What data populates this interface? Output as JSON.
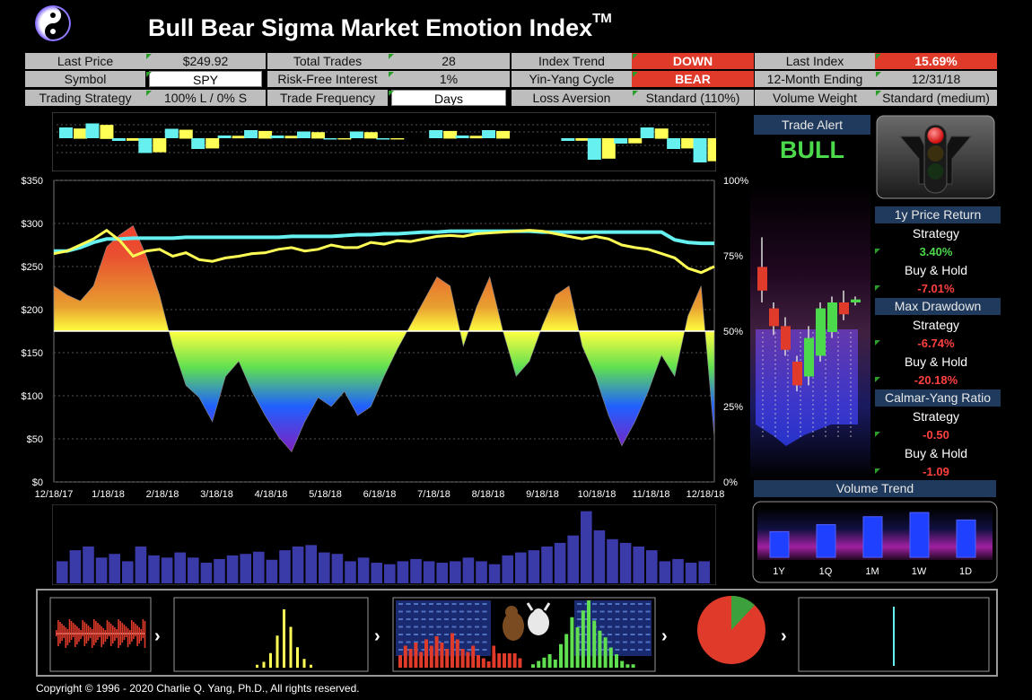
{
  "header": {
    "title": "Bull Bear Sigma Market Emotion Index",
    "trademark": "TM"
  },
  "colors": {
    "red": "#e03a2a",
    "green": "#4cd94c",
    "yellow": "#ffff55",
    "cyan": "#66f0f0",
    "panel_blue": "#1f3a5c"
  },
  "table": {
    "row1": [
      {
        "label": "Last Price",
        "value": "$249.92"
      },
      {
        "label": "Total Trades",
        "value": "28"
      },
      {
        "label": "Index Trend",
        "value": "DOWN"
      },
      {
        "label": "Last Index",
        "value": "15.69%"
      }
    ],
    "row2": [
      {
        "label": "Symbol",
        "value": "SPY"
      },
      {
        "label": "Risk-Free Interest",
        "value": "1%"
      },
      {
        "label": "Yin-Yang Cycle",
        "value": "BEAR"
      },
      {
        "label": "12-Month Ending",
        "value": "12/31/18"
      }
    ],
    "row3": [
      {
        "label": "Trading Strategy",
        "value": "100% L / 0% S"
      },
      {
        "label": "Trade Frequency",
        "value": "Days"
      },
      {
        "label": "Loss Aversion",
        "value": "Standard (110%)"
      },
      {
        "label": "Volume Weight",
        "value": "Standard (medium)"
      }
    ]
  },
  "trade_alert": {
    "title": "Trade Alert",
    "signal": "BULL"
  },
  "traffic_light": {
    "lit": "red"
  },
  "stats": {
    "price_return": {
      "title": "1y Price Return",
      "strategy_label": "Strategy",
      "strategy_value": "3.40%",
      "bh_label": "Buy & Hold",
      "bh_value": "-7.01%"
    },
    "max_drawdown": {
      "title": "Max Drawdown",
      "strategy_label": "Strategy",
      "strategy_value": "-6.74%",
      "bh_label": "Buy & Hold",
      "bh_value": "-20.18%"
    },
    "calmar": {
      "title": "Calmar-Yang Ratio",
      "strategy_label": "Strategy",
      "strategy_value": "-0.50",
      "bh_label": "Buy & Hold",
      "bh_value": "-1.09"
    }
  },
  "volume_trend": {
    "title": "Volume Trend",
    "labels": [
      "1Y",
      "1Q",
      "1M",
      "1W",
      "1D"
    ],
    "values": [
      0.55,
      0.7,
      0.87,
      0.96,
      0.8
    ]
  },
  "copyright": "Copyright © 1996 - 2020 Charlie Q. Yang, Ph.D., All rights reserved.",
  "chart_data": {
    "type": "line",
    "x_ticks": [
      "12/18/17",
      "1/18/18",
      "2/18/18",
      "3/18/18",
      "4/18/18",
      "5/18/18",
      "6/18/18",
      "7/18/18",
      "8/18/18",
      "9/18/18",
      "10/18/18",
      "11/18/18",
      "12/18/18"
    ],
    "y_left_ticks": [
      "$0",
      "$50",
      "$100",
      "$150",
      "$200",
      "$250",
      "$300",
      "$350"
    ],
    "y_right_ticks": [
      "0%",
      "25%",
      "50%",
      "75%",
      "100%"
    ],
    "ylim_left": [
      0,
      350
    ],
    "ylim_right": [
      0,
      100
    ],
    "series": [
      {
        "name": "price",
        "axis": "left",
        "color": "#ffff55",
        "values": [
          265,
          268,
          275,
          282,
          292,
          280,
          262,
          268,
          270,
          262,
          266,
          258,
          256,
          260,
          262,
          265,
          266,
          270,
          272,
          268,
          270,
          275,
          272,
          272,
          278,
          276,
          280,
          279,
          282,
          285,
          286,
          285,
          288,
          289,
          290,
          291,
          292,
          291,
          288,
          285,
          282,
          285,
          282,
          275,
          272,
          270,
          265,
          260,
          248,
          243,
          250
        ]
      },
      {
        "name": "trend",
        "axis": "left",
        "color": "#66f0f0",
        "values": [
          268,
          268,
          272,
          278,
          282,
          282,
          283,
          283,
          283,
          283,
          284,
          284,
          284,
          284,
          284,
          284,
          284,
          284,
          285,
          285,
          285,
          285,
          286,
          287,
          287,
          288,
          288,
          289,
          290,
          290,
          291,
          291,
          291,
          291,
          291,
          291,
          291,
          290,
          290,
          290,
          290,
          290,
          290,
          290,
          290,
          290,
          290,
          281,
          278,
          277,
          277
        ]
      },
      {
        "name": "emotion_index",
        "axis": "right",
        "color": "gradient",
        "values": [
          65,
          62,
          60,
          65,
          78,
          82,
          85,
          75,
          62,
          45,
          32,
          28,
          20,
          35,
          40,
          30,
          22,
          15,
          10,
          20,
          28,
          25,
          30,
          22,
          25,
          35,
          44,
          52,
          60,
          68,
          65,
          45,
          58,
          68,
          50,
          35,
          40,
          52,
          62,
          65,
          45,
          35,
          22,
          12,
          20,
          30,
          42,
          35,
          55,
          65,
          15
        ]
      }
    ]
  },
  "top_bars": {
    "values": [
      0.4,
      0.55,
      -0.1,
      -0.55,
      0.35,
      -0.4,
      0.1,
      0.3,
      0.1,
      0.25,
      -0.05,
      0.25,
      -0.05,
      0,
      0.3,
      0.1,
      0.3,
      0,
      0,
      -0.1,
      -0.8,
      -0.2,
      0.4,
      -0.4,
      -0.9
    ]
  },
  "volume_bars": {
    "values": [
      0.3,
      0.45,
      0.5,
      0.35,
      0.4,
      0.3,
      0.5,
      0.38,
      0.35,
      0.42,
      0.35,
      0.28,
      0.33,
      0.38,
      0.4,
      0.43,
      0.32,
      0.45,
      0.5,
      0.52,
      0.42,
      0.4,
      0.3,
      0.35,
      0.28,
      0.26,
      0.3,
      0.33,
      0.3,
      0.28,
      0.3,
      0.35,
      0.3,
      0.26,
      0.38,
      0.42,
      0.45,
      0.5,
      0.55,
      0.65,
      0.98,
      0.72,
      0.6,
      0.55,
      0.5,
      0.45,
      0.3,
      0.33,
      0.28,
      0.3
    ]
  },
  "candles": [
    {
      "o": 0.72,
      "c": 0.64,
      "h": 0.82,
      "l": 0.6,
      "up": false
    },
    {
      "o": 0.58,
      "c": 0.52,
      "h": 0.6,
      "l": 0.49,
      "up": false
    },
    {
      "o": 0.52,
      "c": 0.44,
      "h": 0.55,
      "l": 0.42,
      "up": false
    },
    {
      "o": 0.4,
      "c": 0.32,
      "h": 0.42,
      "l": 0.3,
      "up": false
    },
    {
      "o": 0.35,
      "c": 0.48,
      "h": 0.52,
      "l": 0.32,
      "up": true
    },
    {
      "o": 0.42,
      "c": 0.58,
      "h": 0.6,
      "l": 0.4,
      "up": true
    },
    {
      "o": 0.5,
      "c": 0.6,
      "h": 0.62,
      "l": 0.48,
      "up": true
    },
    {
      "o": 0.6,
      "c": 0.56,
      "h": 0.64,
      "l": 0.54,
      "up": false
    },
    {
      "o": 0.6,
      "c": 0.61,
      "h": 0.62,
      "l": 0.59,
      "up": true
    }
  ],
  "bottom_strip": {
    "panel2_bars": [
      0,
      0,
      0.05,
      0.1,
      0.25,
      0.55,
      1,
      0.7,
      0.35,
      0.15,
      0.05,
      0
    ],
    "panel3_red": [
      0.2,
      0.35,
      0.3,
      0.4,
      0.25,
      0.45,
      0.35,
      0.5,
      0.4,
      0.3,
      0.55,
      0.45,
      0.3,
      0.25,
      0.35,
      0.2,
      0.15,
      0.1,
      0.35,
      0.6,
      0.75,
      0.5,
      0.3,
      0.15
    ],
    "panel3_green": [
      0.05,
      0.1,
      0.15,
      0.2,
      0.12,
      0.35,
      0.5,
      0.75,
      0.6,
      0.85,
      1,
      0.7,
      0.55,
      0.45,
      0.3,
      0.2,
      0.1,
      0.05,
      0.05
    ],
    "pie_green_fraction": 0.12
  }
}
